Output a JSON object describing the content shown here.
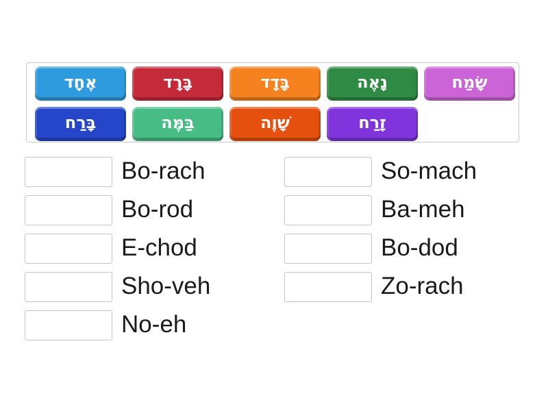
{
  "page": {
    "background": "#ffffff"
  },
  "tile_bank": {
    "tiles": [
      {
        "label": "אֶחָד",
        "color": "#2e9bdf",
        "name": "e-chod"
      },
      {
        "label": "בָּרָד",
        "color": "#c52a3a",
        "name": "bo-rod"
      },
      {
        "label": "בָּדָד",
        "color": "#f5821e",
        "name": "bo-dod"
      },
      {
        "label": "נָאֶה",
        "color": "#2f8a44",
        "name": "no-eh"
      },
      {
        "label": "שָׂמַח",
        "color": "#cb64d6",
        "name": "so-mach"
      },
      {
        "label": "בָּרַח",
        "color": "#2546c9",
        "name": "bo-rach"
      },
      {
        "label": "בַּמֶּה",
        "color": "#47bd85",
        "name": "ba-meh"
      },
      {
        "label": "שָׁוֶה",
        "color": "#e5500f",
        "name": "sho-veh"
      },
      {
        "label": "זָרַח",
        "color": "#7f35db",
        "name": "zo-rach"
      }
    ]
  },
  "match_list": {
    "left": [
      {
        "label": "Bo-rach"
      },
      {
        "label": "Bo-rod"
      },
      {
        "label": "E-chod"
      },
      {
        "label": "Sho-veh"
      },
      {
        "label": "No-eh"
      }
    ],
    "right": [
      {
        "label": "So-mach"
      },
      {
        "label": "Ba-meh"
      },
      {
        "label": "Bo-dod"
      },
      {
        "label": "Zo-rach"
      }
    ]
  }
}
